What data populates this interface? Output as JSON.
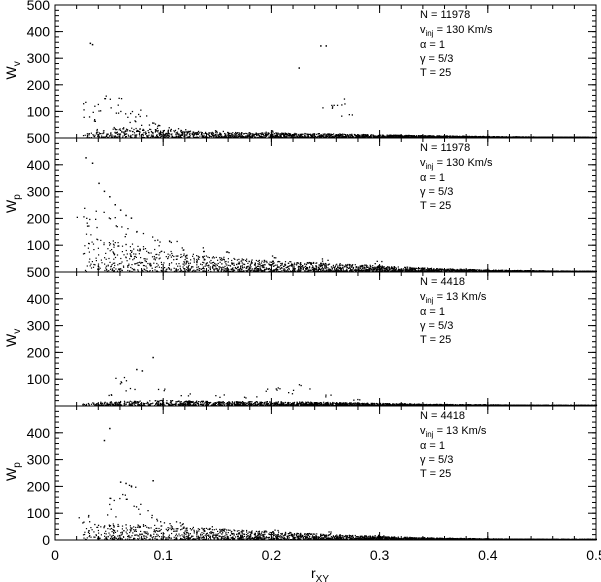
{
  "chart_data": {
    "type": "scatter",
    "xlabel": "r",
    "xlabel_sub": "XY",
    "xlim": [
      0,
      0.5
    ],
    "x_ticks": [
      "0",
      "0.1",
      "0.2",
      "0.3",
      "0.4",
      "0.5"
    ],
    "x_tick_values": [
      0,
      0.1,
      0.2,
      0.3,
      0.4,
      0.5
    ],
    "panels": [
      {
        "ylabel": "W",
        "ylabel_sub": "v",
        "ylim": [
          0,
          500
        ],
        "y_ticks": [
          "100",
          "200",
          "300",
          "400",
          "500"
        ],
        "y_tick_values": [
          100,
          200,
          300,
          400,
          500
        ],
        "annotations": {
          "n": "N = 11978",
          "v_main": "v",
          "v_sub": "inj",
          "v_rest": " = 130 Km/s",
          "alpha": "α = 1",
          "gamma": "γ = 5/3",
          "t": "T = 25"
        },
        "outliers": [
          [
            0.032,
            355
          ],
          [
            0.034,
            350
          ],
          [
            0.245,
            345
          ],
          [
            0.25,
            345
          ],
          [
            0.225,
            262
          ]
        ],
        "points": [
          [
            0.025,
            120
          ],
          [
            0.03,
            85
          ],
          [
            0.035,
            70
          ],
          [
            0.04,
            110
          ],
          [
            0.045,
            140
          ],
          [
            0.05,
            130
          ],
          [
            0.055,
            100
          ],
          [
            0.06,
            140
          ],
          [
            0.065,
            80
          ],
          [
            0.07,
            60
          ],
          [
            0.075,
            95
          ],
          [
            0.08,
            75
          ],
          [
            0.085,
            50
          ],
          [
            0.09,
            45
          ],
          [
            0.1,
            40
          ],
          [
            0.11,
            35
          ],
          [
            0.12,
            30
          ],
          [
            0.15,
            25
          ],
          [
            0.2,
            22
          ],
          [
            0.25,
            125
          ],
          [
            0.26,
            110
          ],
          [
            0.265,
            130
          ],
          [
            0.27,
            95
          ]
        ],
        "envelope": {
          "r": [
            0.025,
            0.05,
            0.1,
            0.15,
            0.2,
            0.25,
            0.3,
            0.35,
            0.4,
            0.45,
            0.5
          ],
          "w": [
            25,
            40,
            30,
            20,
            18,
            15,
            10,
            7,
            4,
            2,
            1
          ]
        }
      },
      {
        "ylabel": "W",
        "ylabel_sub": "p",
        "ylim": [
          0,
          500
        ],
        "y_ticks": [
          "100",
          "200",
          "300",
          "400",
          "500"
        ],
        "y_tick_values": [
          100,
          200,
          300,
          400,
          500
        ],
        "annotations": {
          "n": "N = 11978",
          "v_main": "v",
          "v_sub": "inj",
          "v_rest": " = 130 Km/s",
          "alpha": "α = 1",
          "gamma": "γ = 5/3",
          "t": "T = 25"
        },
        "outliers": [
          [
            0.028,
            425
          ],
          [
            0.034,
            405
          ],
          [
            0.04,
            330
          ],
          [
            0.045,
            300
          ],
          [
            0.05,
            280
          ],
          [
            0.055,
            250
          ],
          [
            0.06,
            230
          ],
          [
            0.065,
            210
          ],
          [
            0.07,
            200
          ]
        ],
        "points": [
          [
            0.025,
            220
          ],
          [
            0.03,
            180
          ],
          [
            0.035,
            160
          ],
          [
            0.04,
            200
          ],
          [
            0.05,
            190
          ],
          [
            0.06,
            170
          ],
          [
            0.07,
            150
          ],
          [
            0.08,
            140
          ],
          [
            0.09,
            120
          ],
          [
            0.1,
            110
          ],
          [
            0.11,
            100
          ],
          [
            0.12,
            90
          ],
          [
            0.14,
            80
          ],
          [
            0.16,
            70
          ],
          [
            0.2,
            60
          ],
          [
            0.25,
            45
          ],
          [
            0.3,
            35
          ]
        ],
        "envelope": {
          "r": [
            0.025,
            0.05,
            0.1,
            0.15,
            0.2,
            0.25,
            0.3,
            0.35,
            0.4,
            0.45,
            0.5
          ],
          "w": [
            150,
            120,
            80,
            55,
            40,
            32,
            22,
            12,
            6,
            3,
            1
          ]
        }
      },
      {
        "ylabel": "W",
        "ylabel_sub": "v",
        "ylim": [
          0,
          500
        ],
        "y_ticks": [
          "100",
          "200",
          "300",
          "400",
          "500"
        ],
        "y_tick_values": [
          100,
          200,
          300,
          400,
          500
        ],
        "annotations": {
          "n": "N = 4418",
          "v_main": "v",
          "v_sub": "inj",
          "v_rest": " = 13 Km/s",
          "alpha": "α = 1",
          "gamma": "γ = 5/3",
          "t": "T = 25"
        },
        "outliers": [
          [
            0.09,
            180
          ],
          [
            0.075,
            135
          ],
          [
            0.08,
            130
          ]
        ],
        "points": [
          [
            0.05,
            40
          ],
          [
            0.06,
            95
          ],
          [
            0.065,
            100
          ],
          [
            0.07,
            60
          ],
          [
            0.1,
            55
          ],
          [
            0.12,
            40
          ],
          [
            0.15,
            35
          ],
          [
            0.18,
            30
          ],
          [
            0.2,
            55
          ],
          [
            0.21,
            65
          ],
          [
            0.22,
            50
          ],
          [
            0.23,
            70
          ],
          [
            0.25,
            35
          ],
          [
            0.28,
            20
          ]
        ],
        "envelope": {
          "r": [
            0.025,
            0.05,
            0.1,
            0.15,
            0.2,
            0.25,
            0.3,
            0.35,
            0.4,
            0.45,
            0.5
          ],
          "w": [
            8,
            15,
            20,
            15,
            15,
            12,
            8,
            5,
            3,
            1,
            1
          ]
        }
      },
      {
        "ylabel": "W",
        "ylabel_sub": "p",
        "ylim": [
          0,
          500
        ],
        "y_ticks": [
          "0",
          "100",
          "200",
          "300",
          "400"
        ],
        "y_tick_values": [
          0,
          100,
          200,
          300,
          400
        ],
        "annotations": {
          "n": "N = 4418",
          "v_main": "v",
          "v_sub": "inj",
          "v_rest": " = 13 Km/s",
          "alpha": "α = 1",
          "gamma": "γ = 5/3",
          "t": "T = 25"
        },
        "outliers": [
          [
            0.05,
            415
          ],
          [
            0.045,
            370
          ],
          [
            0.06,
            215
          ],
          [
            0.065,
            210
          ],
          [
            0.07,
            200
          ],
          [
            0.09,
            220
          ]
        ],
        "points": [
          [
            0.025,
            90
          ],
          [
            0.03,
            70
          ],
          [
            0.04,
            60
          ],
          [
            0.05,
            100
          ],
          [
            0.055,
            140
          ],
          [
            0.06,
            160
          ],
          [
            0.065,
            150
          ],
          [
            0.07,
            180
          ],
          [
            0.075,
            120
          ],
          [
            0.08,
            100
          ],
          [
            0.09,
            80
          ],
          [
            0.1,
            70
          ],
          [
            0.11,
            60
          ],
          [
            0.12,
            55
          ],
          [
            0.14,
            45
          ],
          [
            0.16,
            40
          ],
          [
            0.2,
            35
          ],
          [
            0.25,
            25
          ],
          [
            0.3,
            15
          ]
        ],
        "envelope": {
          "r": [
            0.025,
            0.05,
            0.1,
            0.15,
            0.2,
            0.25,
            0.3,
            0.35,
            0.4,
            0.45,
            0.5
          ],
          "w": [
            40,
            60,
            55,
            40,
            30,
            20,
            12,
            6,
            3,
            1,
            1
          ]
        }
      }
    ]
  }
}
